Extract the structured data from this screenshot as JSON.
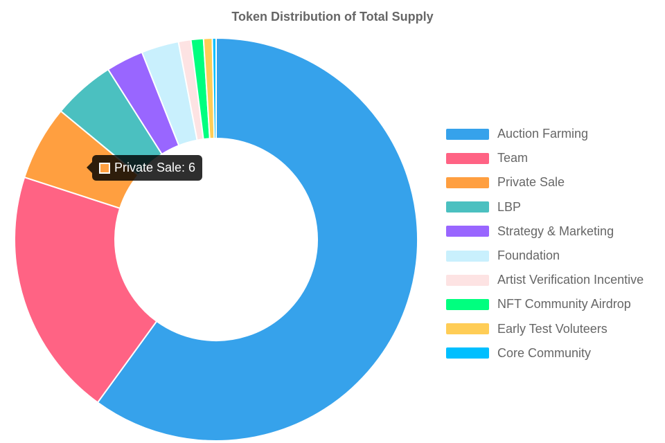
{
  "chart_data": {
    "type": "doughnut",
    "title": "Token Distribution of Total Supply",
    "categories": [
      "Auction Farming",
      "Team",
      "Private Sale",
      "LBP",
      "Strategy & Marketing",
      "Foundation",
      "Artist Verification Incentive",
      "NFT Community Airdrop",
      "Early Test Voluteers",
      "Core Community"
    ],
    "values": [
      60,
      20,
      6,
      5,
      3,
      3,
      1,
      1,
      0.7,
      0.3
    ],
    "colors": [
      "#36a2eb",
      "#ff6384",
      "#ff9f40",
      "#4bc0c0",
      "#9966ff",
      "#c9f0fd",
      "#fde3e3",
      "#00ff7f",
      "#ffcd56",
      "#00bfff"
    ],
    "legend_position": "right",
    "tooltip": {
      "category": "Private Sale",
      "text": "Private Sale: 6",
      "color": "#ff9f40"
    }
  }
}
